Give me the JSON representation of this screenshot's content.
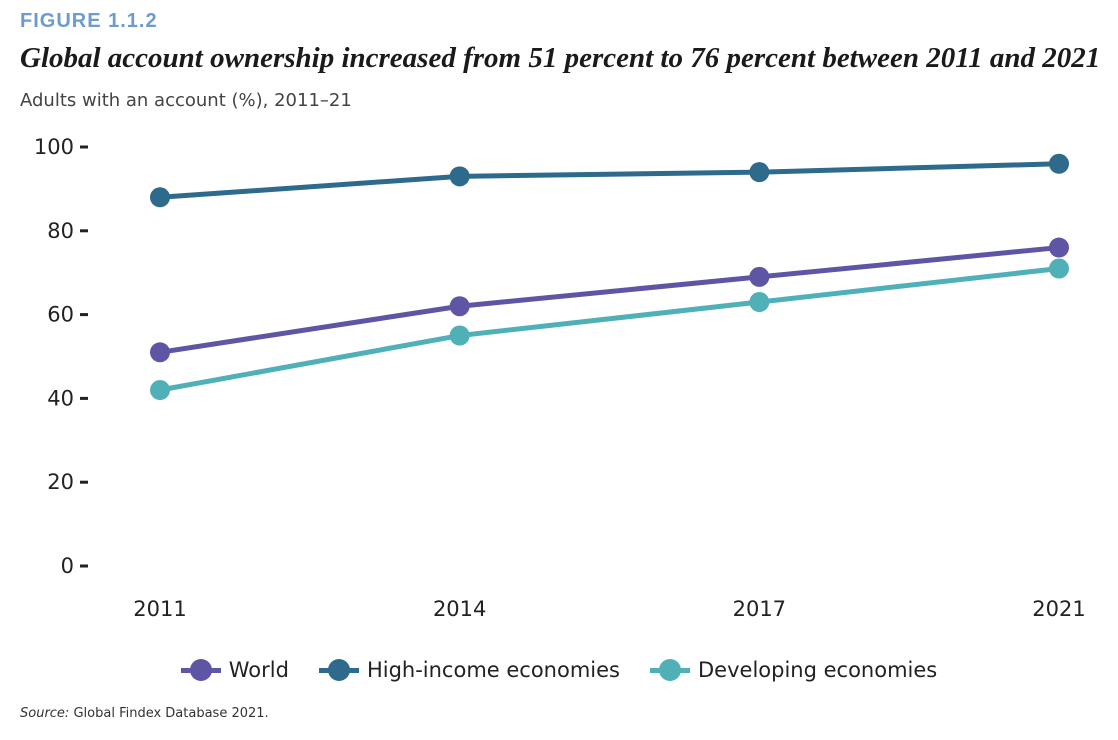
{
  "figure_label": "FIGURE 1.1.2",
  "source_label": "Source:",
  "source_text": "Global Findex Database 2021.",
  "chart_data": {
    "type": "line",
    "title": "Global account ownership increased from 51 percent to 76 percent between 2011 and 2021",
    "subtitle": "Adults with an account (%), 2011–21",
    "xlabel": "",
    "ylabel": "",
    "categories": [
      "2011",
      "2014",
      "2017",
      "2021"
    ],
    "yticks": [
      "0",
      "20",
      "40",
      "60",
      "80",
      "100"
    ],
    "ylim": [
      0,
      100
    ],
    "grid": false,
    "legend_position": "bottom",
    "series": [
      {
        "name": "World",
        "color": "#5e55a5",
        "values": [
          51,
          62,
          69,
          76
        ]
      },
      {
        "name": "High-income economies",
        "color": "#2e6a8c",
        "values": [
          88,
          93,
          94,
          96
        ]
      },
      {
        "name": "Developing economies",
        "color": "#4fb0b8",
        "values": [
          42,
          55,
          63,
          71
        ]
      }
    ]
  }
}
